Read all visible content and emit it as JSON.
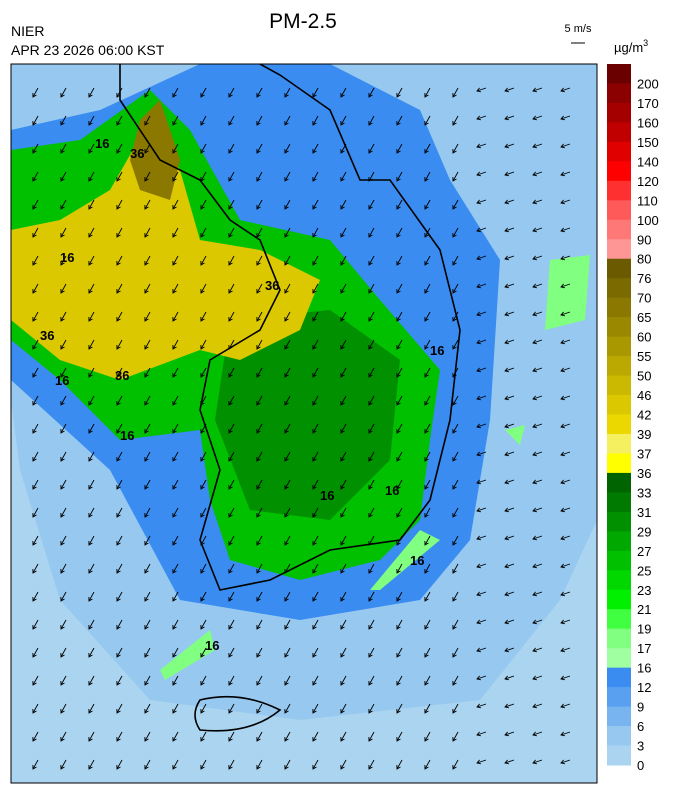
{
  "header": {
    "agency": "NIER",
    "timestamp": "APR 23 2026 06:00 KST",
    "title": "PM-2.5",
    "wind_scale": "5 m/s",
    "unit": "µg/m",
    "unit_power": "3"
  },
  "colorbar": {
    "levels": [
      200,
      170,
      160,
      150,
      140,
      120,
      110,
      100,
      90,
      80,
      76,
      70,
      65,
      60,
      55,
      50,
      46,
      42,
      39,
      37,
      36,
      33,
      31,
      29,
      27,
      25,
      23,
      21,
      19,
      17,
      16,
      12,
      9,
      6,
      3,
      0
    ],
    "colors": [
      "#6b0000",
      "#8b0000",
      "#a50000",
      "#c00000",
      "#e00000",
      "#ff0000",
      "#ff3030",
      "#ff5a5a",
      "#ff7878",
      "#ff9696",
      "#6b5a00",
      "#7a6a00",
      "#8a7800",
      "#9a8800",
      "#aa9800",
      "#bba800",
      "#cbb800",
      "#dbc800",
      "#ebd800",
      "#f5f060",
      "#ffff00",
      "#006400",
      "#007a00",
      "#009000",
      "#00a800",
      "#00c000",
      "#00d800",
      "#00f000",
      "#40ff40",
      "#80ff80",
      "#a0ffa0",
      "#3a8cf0",
      "#5aa0f0",
      "#78b4f0",
      "#96c8f0",
      "#aad4f0"
    ]
  },
  "contour_labels": [
    "16",
    "36",
    "16",
    "36",
    "36",
    "16",
    "16",
    "36",
    "16",
    "16",
    "16",
    "16",
    "16"
  ]
}
